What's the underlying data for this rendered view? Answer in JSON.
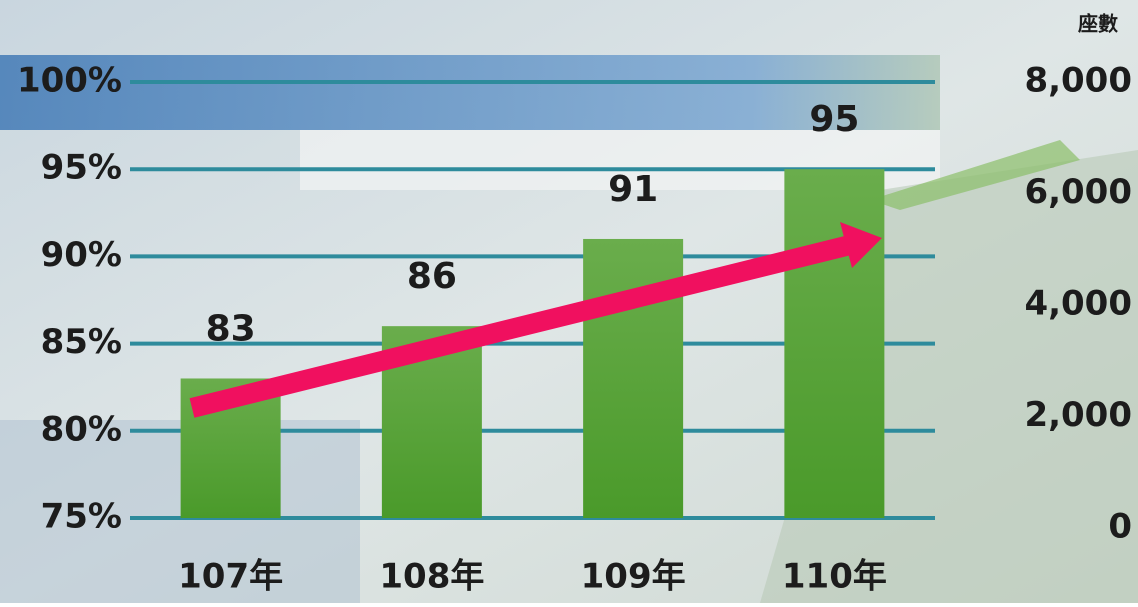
{
  "chart_data": {
    "type": "bar",
    "categories": [
      "107年",
      "108年",
      "109年",
      "110年"
    ],
    "values": [
      83,
      86,
      91,
      95
    ],
    "color": "#55a035",
    "ylim": [
      75,
      100
    ],
    "yticks": [
      {
        "value": 75,
        "label": "75%"
      },
      {
        "value": 80,
        "label": "80%"
      },
      {
        "value": 85,
        "label": "85%"
      },
      {
        "value": 90,
        "label": "90%"
      },
      {
        "value": 95,
        "label": "95%"
      },
      {
        "value": 100,
        "label": "100%"
      }
    ],
    "y2label": "座數",
    "y2lim": [
      0,
      8000
    ],
    "y2ticks": [
      0,
      {
        "value": 2000,
        "label": "2,000"
      },
      {
        "value": 4000,
        "label": "4,000"
      },
      {
        "value": 6000,
        "label": "6,000"
      },
      {
        "value": 8000,
        "label": "8,000"
      }
    ],
    "grid": true
  }
}
